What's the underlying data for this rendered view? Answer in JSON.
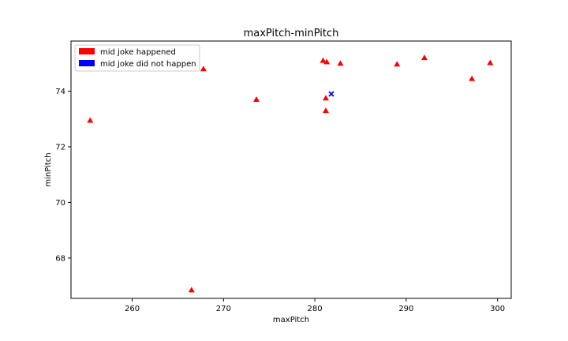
{
  "chart_data": {
    "type": "scatter",
    "title": "maxPitch-minPitch",
    "xlabel": "maxPitch",
    "ylabel": "minPitch",
    "xlim": [
      253.3,
      301.5
    ],
    "ylim": [
      66.55,
      75.8
    ],
    "x_ticks": [
      260,
      270,
      280,
      290,
      300
    ],
    "y_ticks": [
      68,
      70,
      72,
      74
    ],
    "legend_position": "top-left",
    "series": [
      {
        "name": "mid joke happened",
        "marker": "triangle",
        "color": "#ff0000",
        "points": [
          {
            "x": 255.4,
            "y": 72.95
          },
          {
            "x": 266.5,
            "y": 66.85
          },
          {
            "x": 267.8,
            "y": 74.8
          },
          {
            "x": 273.6,
            "y": 73.7
          },
          {
            "x": 280.9,
            "y": 75.1
          },
          {
            "x": 281.3,
            "y": 75.05
          },
          {
            "x": 281.2,
            "y": 73.75
          },
          {
            "x": 281.2,
            "y": 73.3
          },
          {
            "x": 282.8,
            "y": 75.0
          },
          {
            "x": 289.0,
            "y": 74.97
          },
          {
            "x": 292.0,
            "y": 75.2
          },
          {
            "x": 297.2,
            "y": 74.45
          },
          {
            "x": 299.2,
            "y": 75.02
          }
        ]
      },
      {
        "name": "mid joke did not happen",
        "marker": "x",
        "color": "#0000ff",
        "points": [
          {
            "x": 281.8,
            "y": 73.9
          }
        ]
      }
    ]
  }
}
